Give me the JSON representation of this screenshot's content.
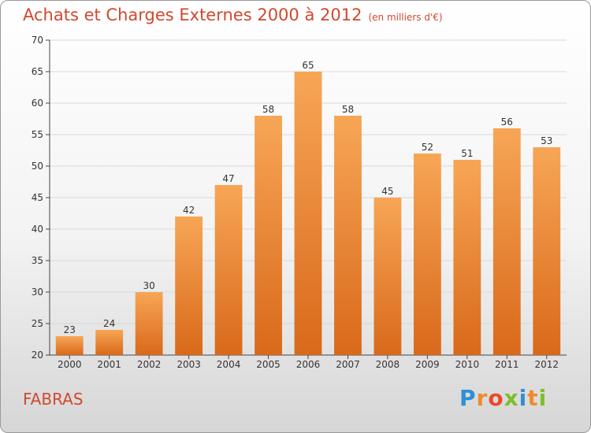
{
  "chart_data": {
    "type": "bar",
    "title": "Achats et Charges Externes 2000 à 2012",
    "unit_label": "(en milliers d'€)",
    "categories": [
      "2000",
      "2001",
      "2002",
      "2003",
      "2004",
      "2005",
      "2006",
      "2007",
      "2008",
      "2009",
      "2010",
      "2011",
      "2012"
    ],
    "values": [
      23,
      24,
      30,
      42,
      47,
      58,
      65,
      58,
      45,
      52,
      51,
      56,
      53
    ],
    "ylim": [
      20,
      70
    ],
    "yticks": [
      20,
      25,
      30,
      35,
      40,
      45,
      50,
      55,
      60,
      65,
      70
    ],
    "xlabel": "",
    "ylabel": "",
    "grid": true,
    "bar_color": "#f08a2c"
  },
  "footer": {
    "commune": "FABRAS",
    "logo_letters": [
      "P",
      "r",
      "o",
      "x",
      "i",
      "t",
      "i"
    ],
    "logo_colors": [
      "#2e8fd6",
      "#f08a2c",
      "#e94a2c",
      "#7bbf2a",
      "#2e8fd6",
      "#f08a2c",
      "#7bbf2a"
    ]
  }
}
